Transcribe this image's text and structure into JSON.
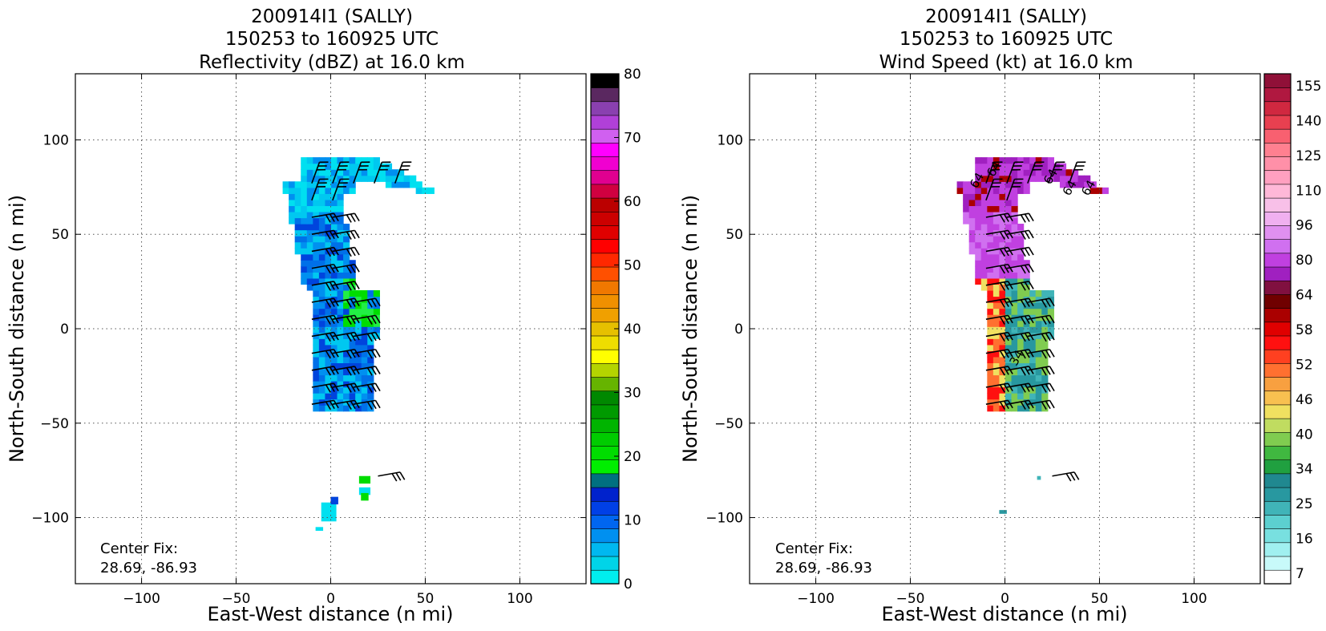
{
  "chart_data": [
    {
      "type": "heatmap",
      "title_lines": [
        "200914I1 (SALLY)",
        "150253 to 160925 UTC",
        "Reflectivity (dBZ) at 16.0 km"
      ],
      "xlabel": "East-West distance (n mi)",
      "ylabel": "North-South distance (n mi)",
      "xlim": [
        -135,
        135
      ],
      "ylim": [
        -135,
        135
      ],
      "xticks": [
        -100,
        -50,
        0,
        50,
        100
      ],
      "yticks": [
        -100,
        -50,
        0,
        50,
        100
      ],
      "x_tick_labels": [
        "−100",
        "−50",
        "0",
        "50",
        "100"
      ],
      "y_tick_labels": [
        "−100",
        "−50",
        "0",
        "50",
        "100"
      ],
      "grid": true,
      "annotation_lines": [
        "Center Fix:",
        "28.69, -86.93"
      ],
      "colorbar": {
        "min": 0,
        "max": 80,
        "step": 2.5,
        "tick_values": [
          0,
          10,
          20,
          30,
          40,
          50,
          60,
          70,
          80
        ],
        "colors": [
          "#00eeee",
          "#00d4e8",
          "#00b8f0",
          "#0090f0",
          "#0066f0",
          "#0040e6",
          "#0022cc",
          "#007080",
          "#00ee00",
          "#00dd00",
          "#00cc00",
          "#00b400",
          "#009a00",
          "#008800",
          "#66b400",
          "#b4d400",
          "#ffff00",
          "#eedd00",
          "#e6c000",
          "#f0a000",
          "#f09000",
          "#f07800",
          "#ff5000",
          "#ff2800",
          "#ff0000",
          "#e00000",
          "#cc0000",
          "#bb0000",
          "#d00040",
          "#e00090",
          "#f000d0",
          "#ff00ff",
          "#d060f0",
          "#b040d8",
          "#8a40b0",
          "#5a2860",
          "#000000"
        ]
      },
      "field_colors": [
        "#00e0f0",
        "#00c8f0",
        "#0090f0",
        "#0070e8",
        "#0044dd",
        "#00dd00",
        "#22ee44"
      ],
      "barb_color": "#000000"
    },
    {
      "type": "heatmap",
      "title_lines": [
        "200914I1 (SALLY)",
        "150253 to 160925 UTC",
        "Wind Speed (kt) at 16.0 km"
      ],
      "xlabel": "East-West distance (n mi)",
      "ylabel": "North-South distance (n mi)",
      "xlim": [
        -135,
        135
      ],
      "ylim": [
        -135,
        135
      ],
      "xticks": [
        -100,
        -50,
        0,
        50,
        100
      ],
      "yticks": [
        -100,
        -50,
        0,
        50,
        100
      ],
      "x_tick_labels": [
        "−100",
        "−50",
        "0",
        "50",
        "100"
      ],
      "y_tick_labels": [
        "−100",
        "−50",
        "0",
        "50",
        "100"
      ],
      "grid": true,
      "annotation_lines": [
        "Center Fix:",
        "28.69, -86.93"
      ],
      "contour_labels": [
        "64",
        "64",
        "64",
        "64",
        "64",
        "34"
      ],
      "colorbar": {
        "tick_labels": [
          "7",
          "16",
          "25",
          "34",
          "40",
          "46",
          "52",
          "58",
          "64",
          "80",
          "96",
          "110",
          "125",
          "140",
          "155"
        ],
        "colors": [
          "#ffffff",
          "#c8fafa",
          "#a0f0f0",
          "#78e0e0",
          "#5cd0d0",
          "#40b4b8",
          "#2898a0",
          "#208890",
          "#20a040",
          "#40b840",
          "#80cc50",
          "#c0dc60",
          "#f0e060",
          "#f8c050",
          "#f8a040",
          "#ff7030",
          "#ff4020",
          "#ff1010",
          "#e00000",
          "#aa0000",
          "#700000",
          "#801040",
          "#a020c0",
          "#c040e0",
          "#d070f0",
          "#e090f0",
          "#f0b0f0",
          "#f8c0e8",
          "#ffb8d8",
          "#ffa0c0",
          "#ff90a8",
          "#ff8090",
          "#f86070",
          "#e84050",
          "#d02840",
          "#b01840",
          "#901038"
        ]
      },
      "field_colors": [
        "#2898a0",
        "#40b4b8",
        "#80cc50",
        "#f0e060",
        "#ff7030",
        "#ff1010",
        "#aa0000",
        "#a020c0",
        "#c040e0",
        "#d070f0"
      ],
      "barb_color": "#000000"
    }
  ]
}
